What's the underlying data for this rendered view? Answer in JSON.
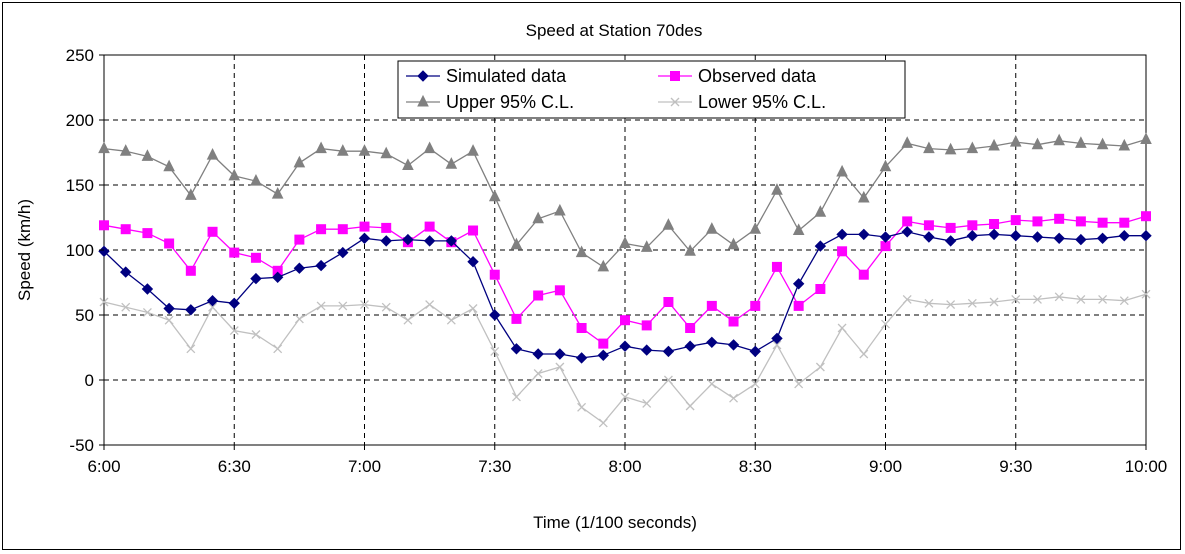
{
  "chart_data": {
    "type": "line",
    "title": "Speed at Station 70des",
    "xlabel": "Time (1/100 seconds)",
    "ylabel": "Speed (km/h)",
    "ylim": [
      -50,
      250
    ],
    "yticks": [
      "-50",
      "0",
      "50",
      "100",
      "150",
      "200",
      "250"
    ],
    "xlim": [
      "6:00",
      "10:00"
    ],
    "xticks": [
      "6:00",
      "6:30",
      "7:00",
      "7:30",
      "8:00",
      "8:30",
      "9:00",
      "9:30",
      "10:00"
    ],
    "x_interval_minutes": 5,
    "grid": true,
    "legend_position": "top-center",
    "series": [
      {
        "name": "Simulated data",
        "color": "#000080",
        "marker": "diamond",
        "values": [
          99,
          83,
          70,
          55,
          54,
          61,
          59,
          78,
          79,
          86,
          88,
          98,
          109,
          107,
          108,
          107,
          107,
          91,
          50,
          24,
          20,
          20,
          17,
          19,
          26,
          23,
          22,
          26,
          29,
          27,
          22,
          32,
          74,
          103,
          112,
          112,
          110,
          114,
          110,
          107,
          111,
          112,
          111,
          110,
          109,
          108,
          109,
          111,
          111
        ]
      },
      {
        "name": "Observed data",
        "color": "#ff00ff",
        "marker": "square",
        "values": [
          119,
          116,
          113,
          105,
          84,
          114,
          98,
          94,
          84,
          108,
          116,
          116,
          118,
          117,
          106,
          118,
          106,
          115,
          81,
          47,
          65,
          69,
          40,
          28,
          46,
          42,
          60,
          40,
          57,
          45,
          57,
          87,
          57,
          70,
          99,
          81,
          103,
          122,
          119,
          117,
          119,
          120,
          123,
          122,
          124,
          122,
          121,
          121,
          126
        ]
      },
      {
        "name": "Upper 95% C.L.",
        "color": "#808080",
        "marker": "triangle",
        "values": [
          178,
          176,
          172,
          164,
          142,
          173,
          157,
          153,
          143,
          167,
          178,
          176,
          176,
          174,
          165,
          178,
          166,
          176,
          141,
          104,
          124,
          130,
          98,
          87,
          105,
          102,
          119,
          99,
          116,
          104,
          116,
          146,
          115,
          129,
          160,
          140,
          164,
          182,
          178,
          177,
          178,
          180,
          183,
          181,
          184,
          182,
          181,
          180,
          185
        ]
      },
      {
        "name": "Lower 95% C.L.",
        "color": "#c0c0c0",
        "marker": "x",
        "values": [
          60,
          56,
          52,
          46,
          24,
          56,
          38,
          35,
          24,
          47,
          57,
          57,
          58,
          56,
          46,
          58,
          46,
          55,
          22,
          -13,
          5,
          10,
          -21,
          -33,
          -13,
          -18,
          0,
          -20,
          -3,
          -14,
          -3,
          27,
          -3,
          10,
          40,
          20,
          43,
          62,
          59,
          58,
          59,
          60,
          62,
          62,
          64,
          62,
          62,
          61,
          66
        ]
      }
    ]
  }
}
